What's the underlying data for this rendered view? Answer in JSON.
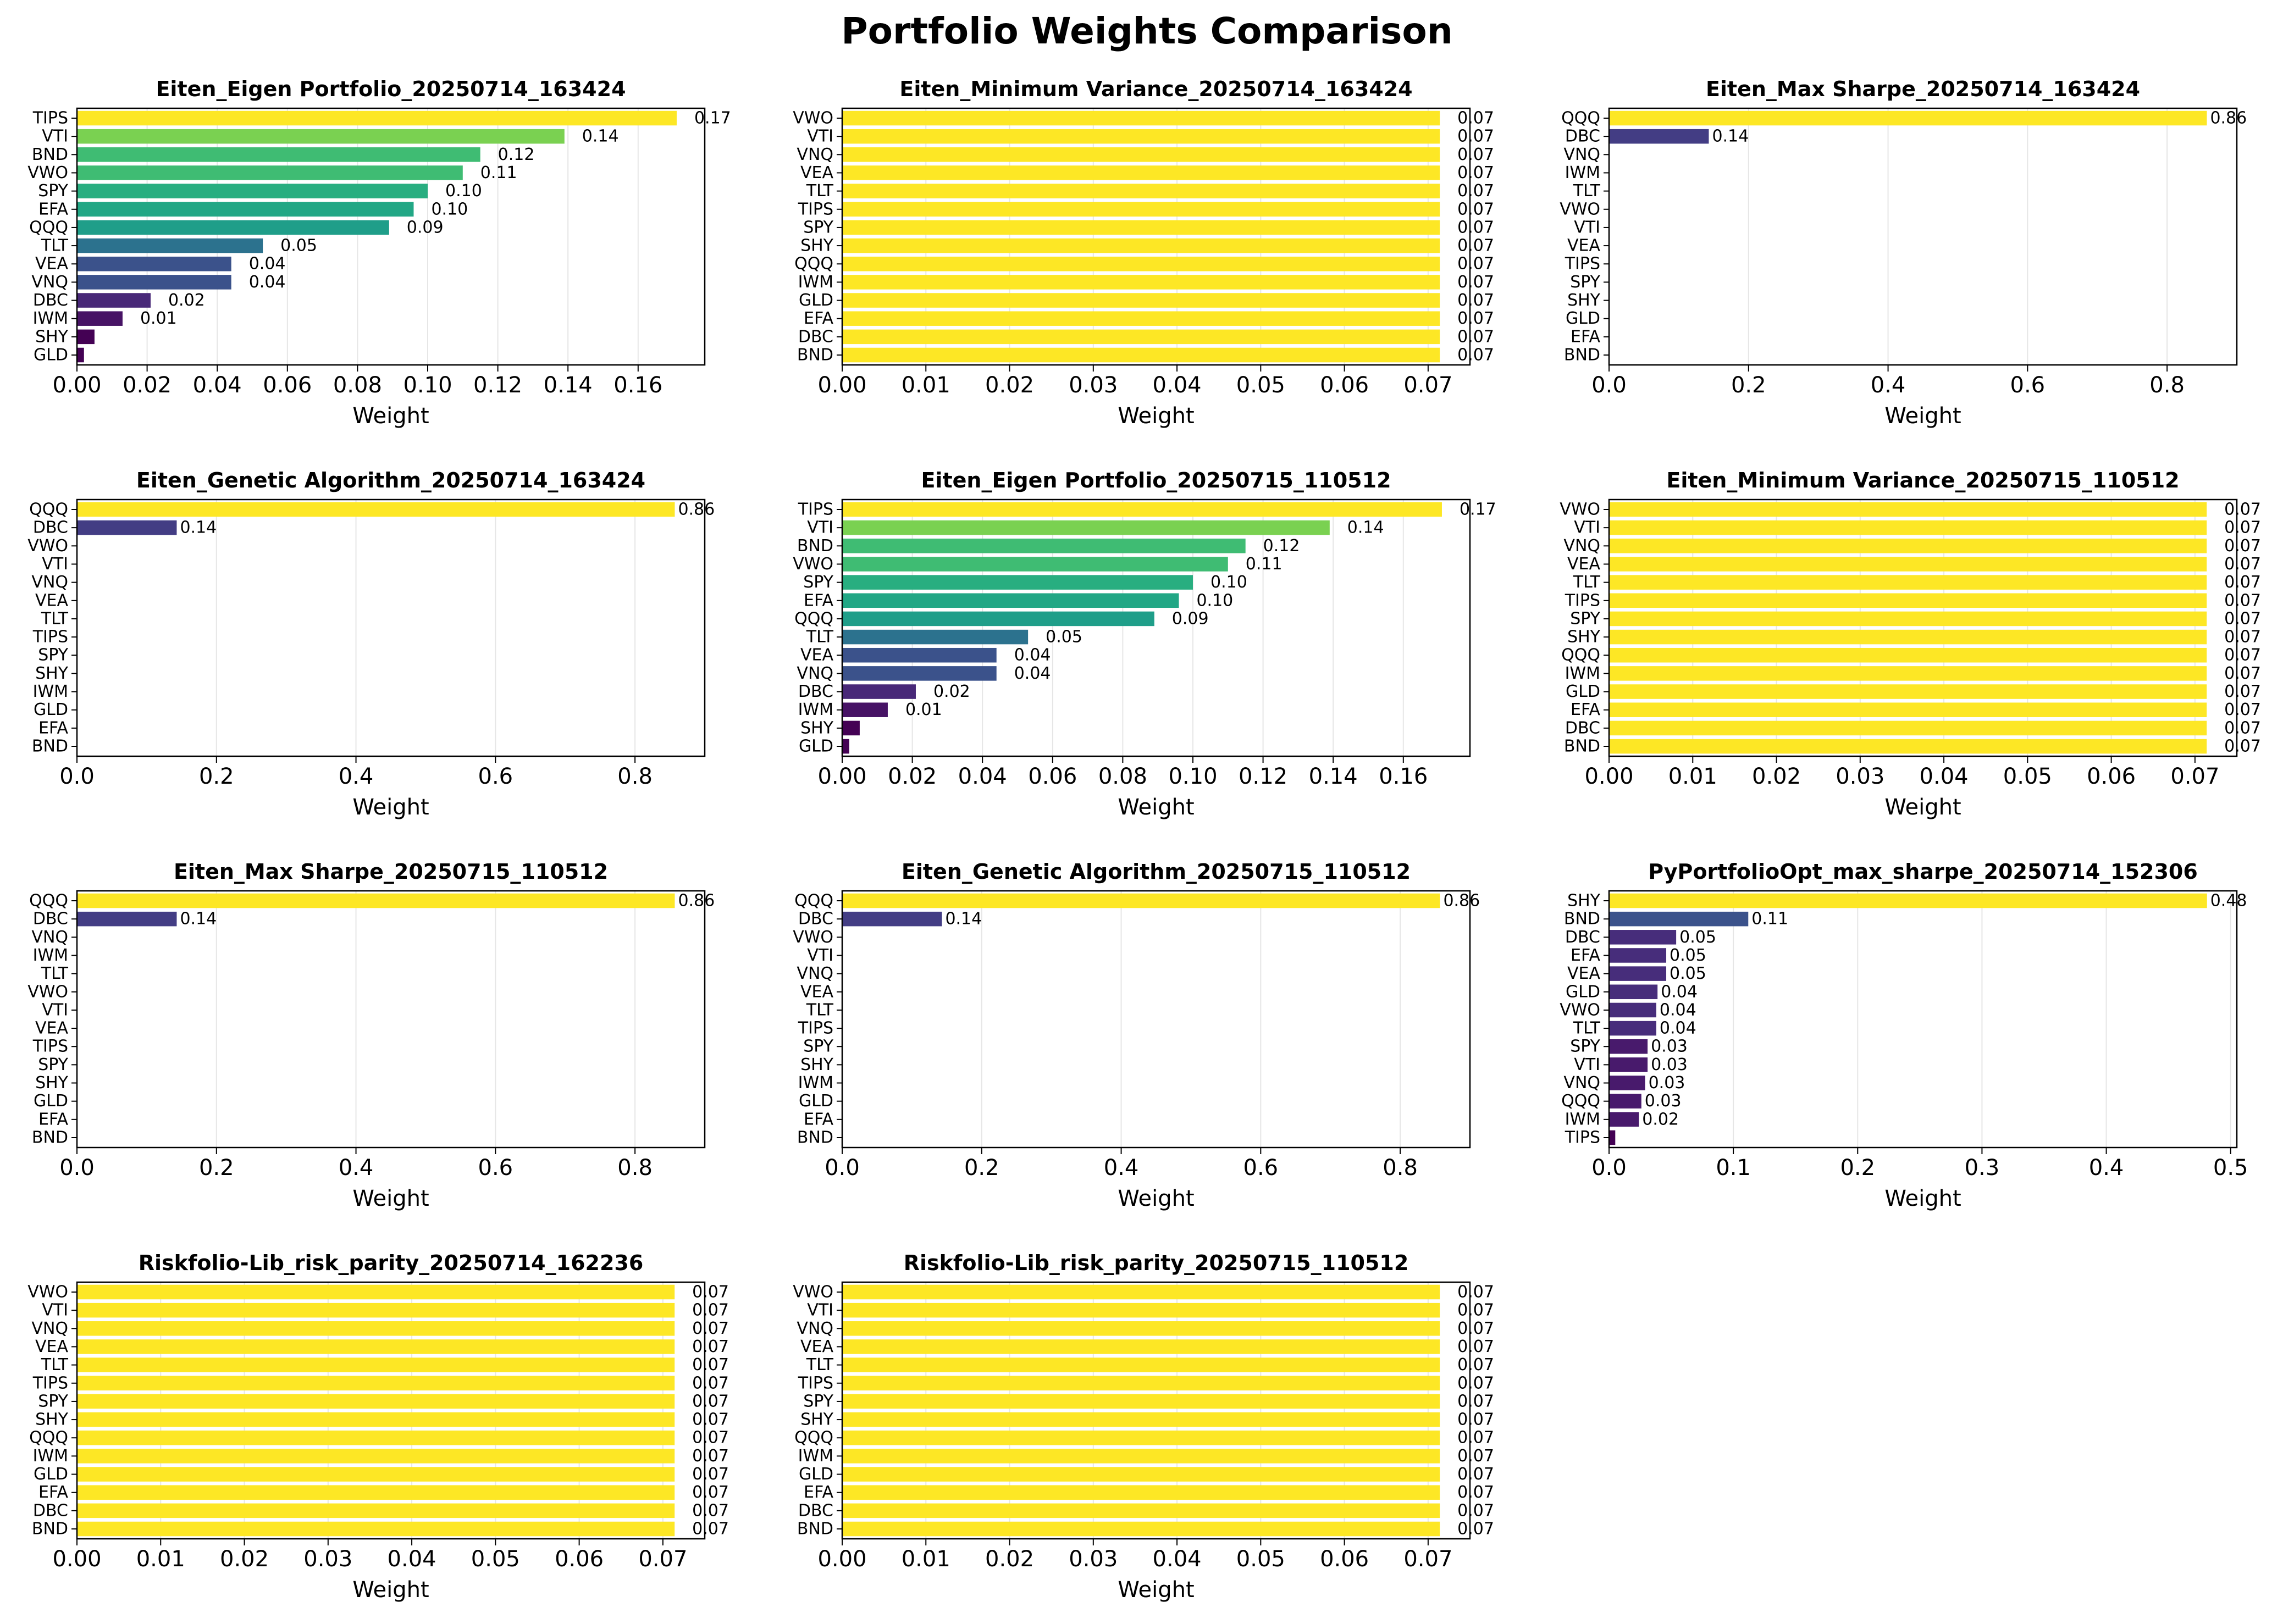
{
  "figure_title": "Portfolio Weights Comparison",
  "chart_data": [
    {
      "type": "bar",
      "orientation": "horizontal",
      "title": "Eiten_Eigen Portfolio_20250714_163424",
      "xlabel": "Weight",
      "xlim": [
        0,
        0.179
      ],
      "xticks": [
        "0.00",
        "0.02",
        "0.04",
        "0.06",
        "0.08",
        "0.10",
        "0.12",
        "0.14",
        "0.16"
      ],
      "xtick_values": [
        0,
        0.02,
        0.04,
        0.06,
        0.08,
        0.1,
        0.12,
        0.14,
        0.16
      ],
      "categories": [
        "TIPS",
        "VTI",
        "BND",
        "VWO",
        "SPY",
        "EFA",
        "QQQ",
        "TLT",
        "VEA",
        "VNQ",
        "DBC",
        "IWM",
        "SHY",
        "GLD"
      ],
      "values": [
        0.171,
        0.139,
        0.115,
        0.11,
        0.1,
        0.096,
        0.089,
        0.053,
        0.044,
        0.044,
        0.021,
        0.013,
        0.005,
        0.002
      ],
      "labels": [
        "0.17",
        "0.14",
        "0.12",
        "0.11",
        "0.10",
        "0.10",
        "0.09",
        "0.05",
        "0.04",
        "0.04",
        "0.02",
        "0.01",
        "",
        ""
      ],
      "colors": [
        "#fde725",
        "#7ad151",
        "#3fbc73",
        "#3fbc73",
        "#28ae80",
        "#22a785",
        "#1f9e89",
        "#2c728e",
        "#3b528b",
        "#3b528b",
        "#482878",
        "#471365",
        "#440154",
        "#440154"
      ],
      "grid": true,
      "label_style": "offset"
    },
    {
      "type": "bar",
      "orientation": "horizontal",
      "title": "Eiten_Minimum Variance_20250714_163424",
      "xlabel": "Weight",
      "xlim": [
        0,
        0.075
      ],
      "xticks": [
        "0.00",
        "0.01",
        "0.02",
        "0.03",
        "0.04",
        "0.05",
        "0.06",
        "0.07"
      ],
      "xtick_values": [
        0,
        0.01,
        0.02,
        0.03,
        0.04,
        0.05,
        0.06,
        0.07
      ],
      "categories": [
        "VWO",
        "VTI",
        "VNQ",
        "VEA",
        "TLT",
        "TIPS",
        "SPY",
        "SHY",
        "QQQ",
        "IWM",
        "GLD",
        "EFA",
        "DBC",
        "BND"
      ],
      "values": [
        0.0714,
        0.0714,
        0.0714,
        0.0714,
        0.0714,
        0.0714,
        0.0714,
        0.0714,
        0.0714,
        0.0714,
        0.0714,
        0.0714,
        0.0714,
        0.0714
      ],
      "labels": [
        "0.07",
        "0.07",
        "0.07",
        "0.07",
        "0.07",
        "0.07",
        "0.07",
        "0.07",
        "0.07",
        "0.07",
        "0.07",
        "0.07",
        "0.07",
        "0.07"
      ],
      "colors": [
        "#fde725",
        "#fde725",
        "#fde725",
        "#fde725",
        "#fde725",
        "#fde725",
        "#fde725",
        "#fde725",
        "#fde725",
        "#fde725",
        "#fde725",
        "#fde725",
        "#fde725",
        "#fde725"
      ],
      "grid": true,
      "label_style": "offset"
    },
    {
      "type": "bar",
      "orientation": "horizontal",
      "title": "Eiten_Max Sharpe_20250714_163424",
      "xlabel": "Weight",
      "xlim": [
        0,
        0.9
      ],
      "xticks": [
        "0.0",
        "0.2",
        "0.4",
        "0.6",
        "0.8"
      ],
      "xtick_values": [
        0,
        0.2,
        0.4,
        0.6,
        0.8
      ],
      "categories": [
        "QQQ",
        "DBC",
        "VNQ",
        "IWM",
        "TLT",
        "VWO",
        "VTI",
        "VEA",
        "TIPS",
        "SPY",
        "SHY",
        "GLD",
        "EFA",
        "BND"
      ],
      "values": [
        0.857,
        0.143,
        0,
        0,
        0,
        0,
        0,
        0,
        0,
        0,
        0,
        0,
        0,
        0
      ],
      "labels": [
        "0.86",
        "0.14",
        "",
        "",
        "",
        "",
        "",
        "",
        "",
        "",
        "",
        "",
        "",
        ""
      ],
      "colors": [
        "#fde725",
        "#433d84",
        "#440154",
        "#440154",
        "#440154",
        "#440154",
        "#440154",
        "#440154",
        "#440154",
        "#440154",
        "#440154",
        "#440154",
        "#440154",
        "#440154"
      ],
      "grid": true,
      "label_style": "tight"
    },
    {
      "type": "bar",
      "orientation": "horizontal",
      "title": "Eiten_Genetic Algorithm_20250714_163424",
      "xlabel": "Weight",
      "xlim": [
        0,
        0.9
      ],
      "xticks": [
        "0.0",
        "0.2",
        "0.4",
        "0.6",
        "0.8"
      ],
      "xtick_values": [
        0,
        0.2,
        0.4,
        0.6,
        0.8
      ],
      "categories": [
        "QQQ",
        "DBC",
        "VWO",
        "VTI",
        "VNQ",
        "VEA",
        "TLT",
        "TIPS",
        "SPY",
        "SHY",
        "IWM",
        "GLD",
        "EFA",
        "BND"
      ],
      "values": [
        0.857,
        0.143,
        0,
        0,
        0,
        0,
        0,
        0,
        0,
        0,
        0,
        0,
        0,
        0
      ],
      "labels": [
        "0.86",
        "0.14",
        "",
        "",
        "",
        "",
        "",
        "",
        "",
        "",
        "",
        "",
        "",
        ""
      ],
      "colors": [
        "#fde725",
        "#433d84",
        "#440154",
        "#440154",
        "#440154",
        "#440154",
        "#440154",
        "#440154",
        "#440154",
        "#440154",
        "#440154",
        "#440154",
        "#440154",
        "#440154"
      ],
      "grid": true,
      "label_style": "tight"
    },
    {
      "type": "bar",
      "orientation": "horizontal",
      "title": "Eiten_Eigen Portfolio_20250715_110512",
      "xlabel": "Weight",
      "xlim": [
        0,
        0.179
      ],
      "xticks": [
        "0.00",
        "0.02",
        "0.04",
        "0.06",
        "0.08",
        "0.10",
        "0.12",
        "0.14",
        "0.16"
      ],
      "xtick_values": [
        0,
        0.02,
        0.04,
        0.06,
        0.08,
        0.1,
        0.12,
        0.14,
        0.16
      ],
      "categories": [
        "TIPS",
        "VTI",
        "BND",
        "VWO",
        "SPY",
        "EFA",
        "QQQ",
        "TLT",
        "VEA",
        "VNQ",
        "DBC",
        "IWM",
        "SHY",
        "GLD"
      ],
      "values": [
        0.171,
        0.139,
        0.115,
        0.11,
        0.1,
        0.096,
        0.089,
        0.053,
        0.044,
        0.044,
        0.021,
        0.013,
        0.005,
        0.002
      ],
      "labels": [
        "0.17",
        "0.14",
        "0.12",
        "0.11",
        "0.10",
        "0.10",
        "0.09",
        "0.05",
        "0.04",
        "0.04",
        "0.02",
        "0.01",
        "",
        ""
      ],
      "colors": [
        "#fde725",
        "#7ad151",
        "#3fbc73",
        "#3fbc73",
        "#28ae80",
        "#22a785",
        "#1f9e89",
        "#2c728e",
        "#3b528b",
        "#3b528b",
        "#482878",
        "#471365",
        "#440154",
        "#440154"
      ],
      "grid": true,
      "label_style": "offset"
    },
    {
      "type": "bar",
      "orientation": "horizontal",
      "title": "Eiten_Minimum Variance_20250715_110512",
      "xlabel": "Weight",
      "xlim": [
        0,
        0.075
      ],
      "xticks": [
        "0.00",
        "0.01",
        "0.02",
        "0.03",
        "0.04",
        "0.05",
        "0.06",
        "0.07"
      ],
      "xtick_values": [
        0,
        0.01,
        0.02,
        0.03,
        0.04,
        0.05,
        0.06,
        0.07
      ],
      "categories": [
        "VWO",
        "VTI",
        "VNQ",
        "VEA",
        "TLT",
        "TIPS",
        "SPY",
        "SHY",
        "QQQ",
        "IWM",
        "GLD",
        "EFA",
        "DBC",
        "BND"
      ],
      "values": [
        0.0714,
        0.0714,
        0.0714,
        0.0714,
        0.0714,
        0.0714,
        0.0714,
        0.0714,
        0.0714,
        0.0714,
        0.0714,
        0.0714,
        0.0714,
        0.0714
      ],
      "labels": [
        "0.07",
        "0.07",
        "0.07",
        "0.07",
        "0.07",
        "0.07",
        "0.07",
        "0.07",
        "0.07",
        "0.07",
        "0.07",
        "0.07",
        "0.07",
        "0.07"
      ],
      "colors": [
        "#fde725",
        "#fde725",
        "#fde725",
        "#fde725",
        "#fde725",
        "#fde725",
        "#fde725",
        "#fde725",
        "#fde725",
        "#fde725",
        "#fde725",
        "#fde725",
        "#fde725",
        "#fde725"
      ],
      "grid": true,
      "label_style": "offset"
    },
    {
      "type": "bar",
      "orientation": "horizontal",
      "title": "Eiten_Max Sharpe_20250715_110512",
      "xlabel": "Weight",
      "xlim": [
        0,
        0.9
      ],
      "xticks": [
        "0.0",
        "0.2",
        "0.4",
        "0.6",
        "0.8"
      ],
      "xtick_values": [
        0,
        0.2,
        0.4,
        0.6,
        0.8
      ],
      "categories": [
        "QQQ",
        "DBC",
        "VNQ",
        "IWM",
        "TLT",
        "VWO",
        "VTI",
        "VEA",
        "TIPS",
        "SPY",
        "SHY",
        "GLD",
        "EFA",
        "BND"
      ],
      "values": [
        0.857,
        0.143,
        0,
        0,
        0,
        0,
        0,
        0,
        0,
        0,
        0,
        0,
        0,
        0
      ],
      "labels": [
        "0.86",
        "0.14",
        "",
        "",
        "",
        "",
        "",
        "",
        "",
        "",
        "",
        "",
        "",
        ""
      ],
      "colors": [
        "#fde725",
        "#433d84",
        "#440154",
        "#440154",
        "#440154",
        "#440154",
        "#440154",
        "#440154",
        "#440154",
        "#440154",
        "#440154",
        "#440154",
        "#440154",
        "#440154"
      ],
      "grid": true,
      "label_style": "tight"
    },
    {
      "type": "bar",
      "orientation": "horizontal",
      "title": "Eiten_Genetic Algorithm_20250715_110512",
      "xlabel": "Weight",
      "xlim": [
        0,
        0.9
      ],
      "xticks": [
        "0.0",
        "0.2",
        "0.4",
        "0.6",
        "0.8"
      ],
      "xtick_values": [
        0,
        0.2,
        0.4,
        0.6,
        0.8
      ],
      "categories": [
        "QQQ",
        "DBC",
        "VWO",
        "VTI",
        "VNQ",
        "VEA",
        "TLT",
        "TIPS",
        "SPY",
        "SHY",
        "IWM",
        "GLD",
        "EFA",
        "BND"
      ],
      "values": [
        0.857,
        0.143,
        0,
        0,
        0,
        0,
        0,
        0,
        0,
        0,
        0,
        0,
        0,
        0
      ],
      "labels": [
        "0.86",
        "0.14",
        "",
        "",
        "",
        "",
        "",
        "",
        "",
        "",
        "",
        "",
        "",
        ""
      ],
      "colors": [
        "#fde725",
        "#433d84",
        "#440154",
        "#440154",
        "#440154",
        "#440154",
        "#440154",
        "#440154",
        "#440154",
        "#440154",
        "#440154",
        "#440154",
        "#440154",
        "#440154"
      ],
      "grid": true,
      "label_style": "tight"
    },
    {
      "type": "bar",
      "orientation": "horizontal",
      "title": "PyPortfolioOpt_max_sharpe_20250714_152306",
      "xlabel": "Weight",
      "xlim": [
        0,
        0.505
      ],
      "xticks": [
        "0.0",
        "0.1",
        "0.2",
        "0.3",
        "0.4",
        "0.5"
      ],
      "xtick_values": [
        0,
        0.1,
        0.2,
        0.3,
        0.4,
        0.5
      ],
      "categories": [
        "SHY",
        "BND",
        "DBC",
        "EFA",
        "VEA",
        "GLD",
        "VWO",
        "TLT",
        "SPY",
        "VTI",
        "VNQ",
        "QQQ",
        "IWM",
        "TIPS"
      ],
      "values": [
        0.481,
        0.112,
        0.054,
        0.046,
        0.046,
        0.039,
        0.038,
        0.038,
        0.031,
        0.031,
        0.029,
        0.026,
        0.024,
        0.005
      ],
      "labels": [
        "0.48",
        "0.11",
        "0.05",
        "0.05",
        "0.05",
        "0.04",
        "0.04",
        "0.04",
        "0.03",
        "0.03",
        "0.03",
        "0.03",
        "0.02",
        ""
      ],
      "colors": [
        "#fde725",
        "#3b528b",
        "#472d7b",
        "#472d7b",
        "#472d7b",
        "#472d7b",
        "#472d7b",
        "#472d7b",
        "#481a6c",
        "#481a6c",
        "#481a6c",
        "#481a6c",
        "#481a6c",
        "#440154"
      ],
      "grid": true,
      "label_style": "tight"
    },
    {
      "type": "bar",
      "orientation": "horizontal",
      "title": "Riskfolio-Lib_risk_parity_20250714_162236",
      "xlabel": "Weight",
      "xlim": [
        0,
        0.075
      ],
      "xticks": [
        "0.00",
        "0.01",
        "0.02",
        "0.03",
        "0.04",
        "0.05",
        "0.06",
        "0.07"
      ],
      "xtick_values": [
        0,
        0.01,
        0.02,
        0.03,
        0.04,
        0.05,
        0.06,
        0.07
      ],
      "categories": [
        "VWO",
        "VTI",
        "VNQ",
        "VEA",
        "TLT",
        "TIPS",
        "SPY",
        "SHY",
        "QQQ",
        "IWM",
        "GLD",
        "EFA",
        "DBC",
        "BND"
      ],
      "values": [
        0.0714,
        0.0714,
        0.0714,
        0.0714,
        0.0714,
        0.0714,
        0.0714,
        0.0714,
        0.0714,
        0.0714,
        0.0714,
        0.0714,
        0.0714,
        0.0714
      ],
      "labels": [
        "0.07",
        "0.07",
        "0.07",
        "0.07",
        "0.07",
        "0.07",
        "0.07",
        "0.07",
        "0.07",
        "0.07",
        "0.07",
        "0.07",
        "0.07",
        "0.07"
      ],
      "colors": [
        "#fde725",
        "#fde725",
        "#fde725",
        "#fde725",
        "#fde725",
        "#fde725",
        "#fde725",
        "#fde725",
        "#fde725",
        "#fde725",
        "#fde725",
        "#fde725",
        "#fde725",
        "#fde725"
      ],
      "grid": true,
      "label_style": "offset"
    },
    {
      "type": "bar",
      "orientation": "horizontal",
      "title": "Riskfolio-Lib_risk_parity_20250715_110512",
      "xlabel": "Weight",
      "xlim": [
        0,
        0.075
      ],
      "xticks": [
        "0.00",
        "0.01",
        "0.02",
        "0.03",
        "0.04",
        "0.05",
        "0.06",
        "0.07"
      ],
      "xtick_values": [
        0,
        0.01,
        0.02,
        0.03,
        0.04,
        0.05,
        0.06,
        0.07
      ],
      "categories": [
        "VWO",
        "VTI",
        "VNQ",
        "VEA",
        "TLT",
        "TIPS",
        "SPY",
        "SHY",
        "QQQ",
        "IWM",
        "GLD",
        "EFA",
        "DBC",
        "BND"
      ],
      "values": [
        0.0714,
        0.0714,
        0.0714,
        0.0714,
        0.0714,
        0.0714,
        0.0714,
        0.0714,
        0.0714,
        0.0714,
        0.0714,
        0.0714,
        0.0714,
        0.0714
      ],
      "labels": [
        "0.07",
        "0.07",
        "0.07",
        "0.07",
        "0.07",
        "0.07",
        "0.07",
        "0.07",
        "0.07",
        "0.07",
        "0.07",
        "0.07",
        "0.07",
        "0.07"
      ],
      "colors": [
        "#fde725",
        "#fde725",
        "#fde725",
        "#fde725",
        "#fde725",
        "#fde725",
        "#fde725",
        "#fde725",
        "#fde725",
        "#fde725",
        "#fde725",
        "#fde725",
        "#fde725",
        "#fde725"
      ],
      "grid": true,
      "label_style": "offset"
    }
  ]
}
